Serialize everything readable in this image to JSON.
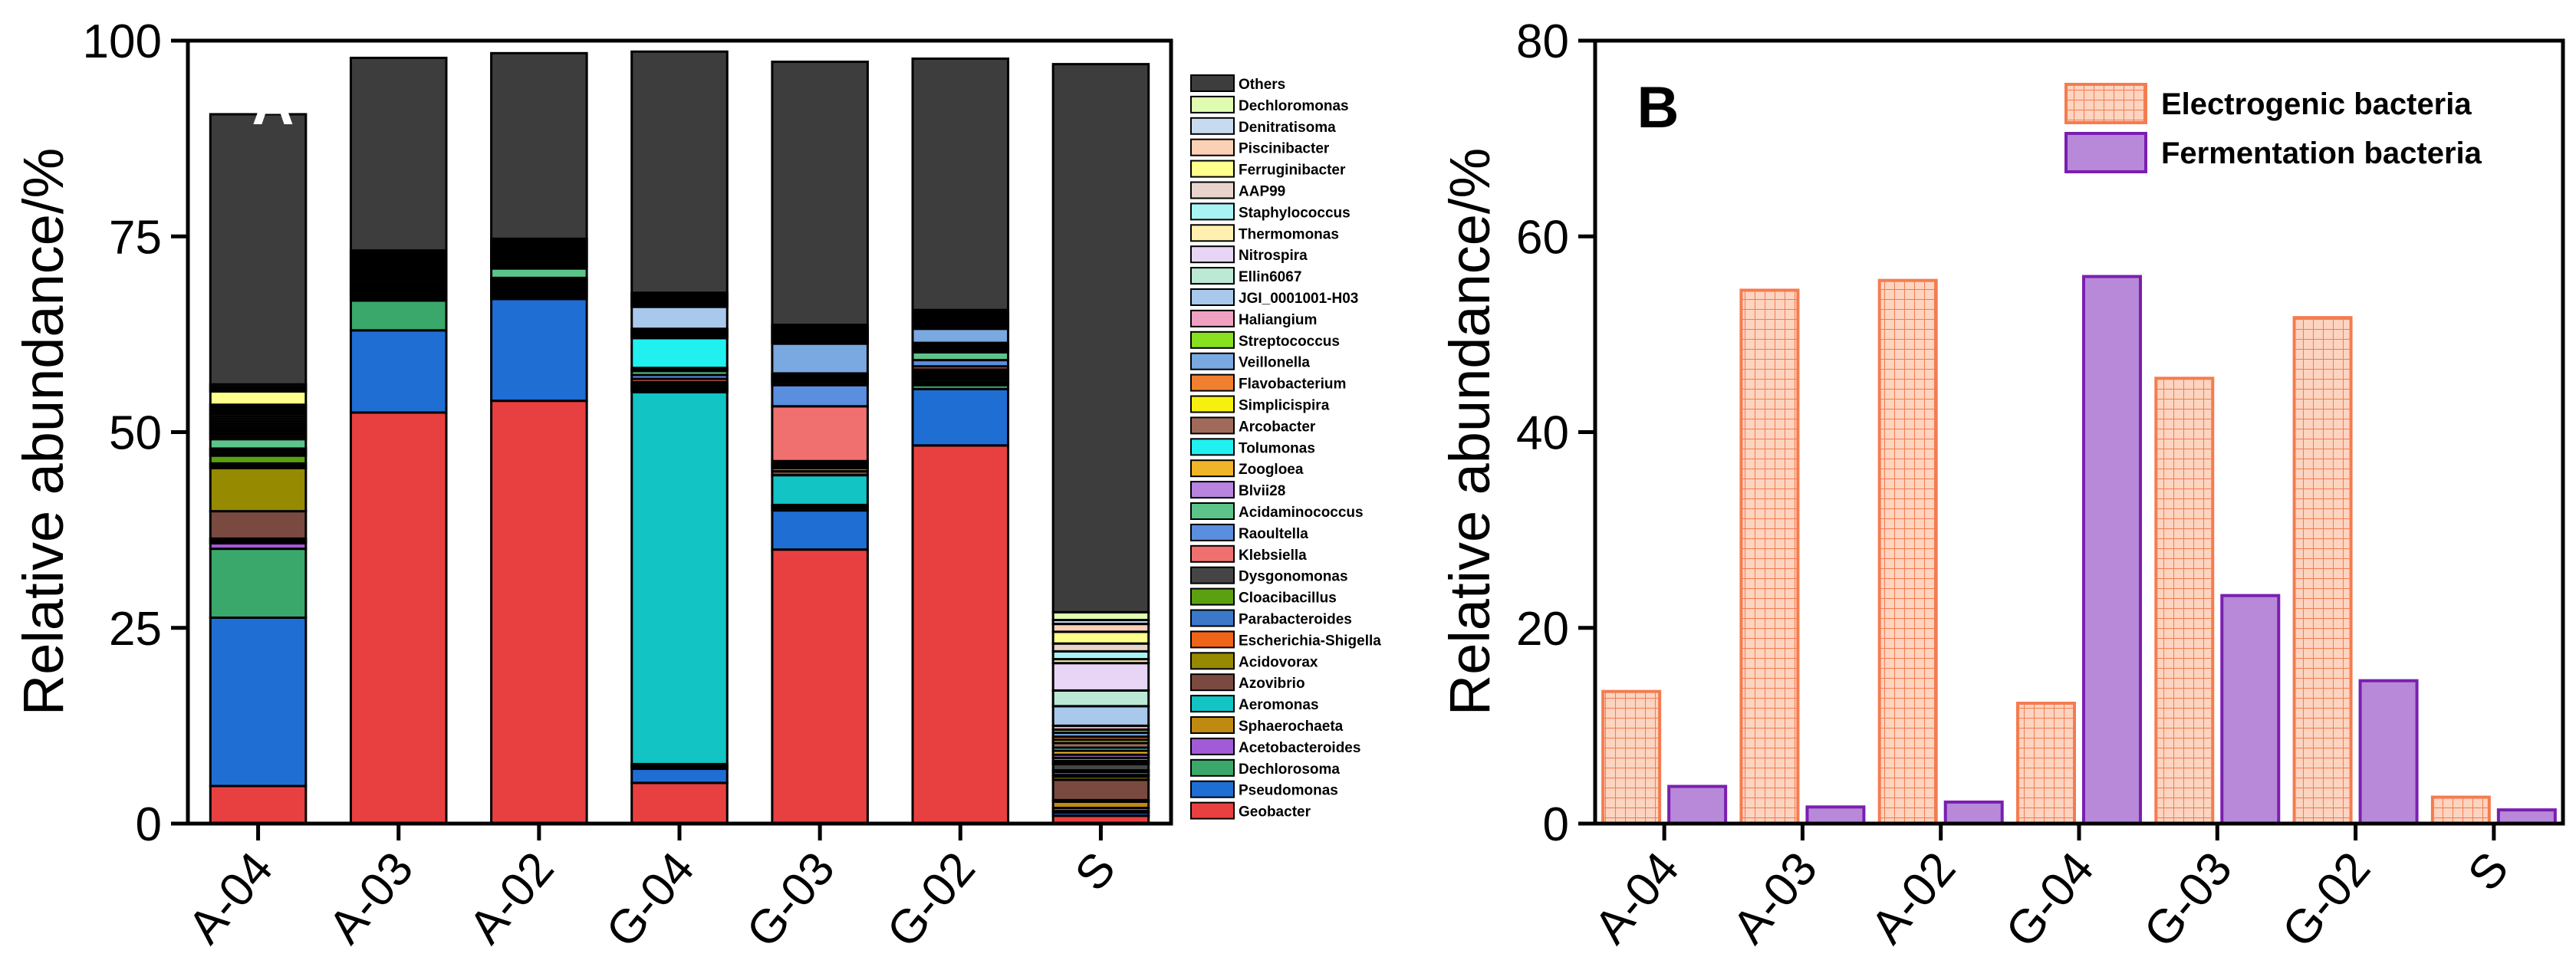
{
  "chart_data": [
    {
      "type": "stacked_bar",
      "panel_label": "A",
      "ylabel": "Relative abundance/%",
      "xlabel": "",
      "ylim": [
        0,
        100
      ],
      "yticks": [
        "0",
        "25",
        "50",
        "75",
        "100"
      ],
      "categories": [
        "A-04",
        "A-03",
        "A-02",
        "G-04",
        "G-03",
        "G-02",
        "S"
      ],
      "legend_position": "right",
      "series": [
        {
          "name": "Geobacter",
          "color": "#e84040",
          "values": [
            4.8,
            52.5,
            54.0,
            5.2,
            35.0,
            48.3,
            1.0
          ]
        },
        {
          "name": "Pseudomonas",
          "color": "#1f6ed4",
          "values": [
            21.5,
            10.5,
            13.0,
            1.8,
            5.0,
            7.2,
            0.4
          ]
        },
        {
          "name": "Dechlorosoma",
          "color": "#3aa86a",
          "values": [
            8.8,
            3.8,
            0.3,
            0.2,
            0.3,
            0.5,
            0.2
          ]
        },
        {
          "name": "Acetobacteroides",
          "color": "#a35ad6",
          "values": [
            0.7,
            0.3,
            0.3,
            0.2,
            0.2,
            0.2,
            0.4
          ]
        },
        {
          "name": "Sphaerochaeta",
          "color": "#c08a10",
          "values": [
            0.3,
            0.2,
            0.2,
            0.2,
            0.2,
            0.2,
            0.8
          ]
        },
        {
          "name": "Aeromonas",
          "color": "#12c4c4",
          "values": [
            0.3,
            0.2,
            0.2,
            47.5,
            3.8,
            0.3,
            0.2
          ]
        },
        {
          "name": "Azovibrio",
          "color": "#7a4a40",
          "values": [
            3.5,
            0.2,
            0.2,
            0.2,
            0.5,
            0.2,
            2.6
          ]
        },
        {
          "name": "Acidovorax",
          "color": "#968a00",
          "values": [
            5.5,
            0.2,
            0.2,
            0.2,
            0.4,
            0.2,
            0.4
          ]
        },
        {
          "name": "Escherichia-Shigella",
          "color": "#f06418",
          "values": [
            0.3,
            0.2,
            0.2,
            0.2,
            0.2,
            0.2,
            0.2
          ]
        },
        {
          "name": "Parabacteroides",
          "color": "#3b78c8",
          "values": [
            0.3,
            0.2,
            0.2,
            0.2,
            0.2,
            0.2,
            0.4
          ]
        },
        {
          "name": "Cloacibacillus",
          "color": "#5aa010",
          "values": [
            1.0,
            0.2,
            0.2,
            0.3,
            0.2,
            0.3,
            0.2
          ]
        },
        {
          "name": "Dysgonomonas",
          "color": "#454545",
          "values": [
            0.3,
            0.2,
            0.2,
            0.2,
            0.3,
            0.2,
            0.8
          ]
        },
        {
          "name": "Klebsiella",
          "color": "#f07070",
          "values": [
            0.3,
            0.2,
            0.2,
            0.4,
            7.0,
            0.4,
            0.2
          ]
        },
        {
          "name": "Raoultella",
          "color": "#5a8ede",
          "values": [
            0.3,
            0.2,
            0.3,
            0.5,
            2.7,
            0.8,
            0.2
          ]
        },
        {
          "name": "Acidaminococcus",
          "color": "#5cc48a",
          "values": [
            1.2,
            0.3,
            1.2,
            0.5,
            0.3,
            1.0,
            0.4
          ]
        },
        {
          "name": "Blvii28",
          "color": "#b884e0",
          "values": [
            0.3,
            0.2,
            0.2,
            0.2,
            0.2,
            0.2,
            0.4
          ]
        },
        {
          "name": "Zoogloea",
          "color": "#f0b428",
          "values": [
            0.3,
            0.2,
            0.2,
            0.2,
            0.2,
            0.2,
            0.5
          ]
        },
        {
          "name": "Tolumonas",
          "color": "#20f0f0",
          "values": [
            0.2,
            0.2,
            0.2,
            3.8,
            0.2,
            0.2,
            0.4
          ]
        },
        {
          "name": "Arcobacter",
          "color": "#a06a5a",
          "values": [
            0.3,
            0.2,
            0.2,
            0.2,
            0.2,
            0.2,
            0.6
          ]
        },
        {
          "name": "Simplicispira",
          "color": "#f5f010",
          "values": [
            0.3,
            0.2,
            0.2,
            0.2,
            0.2,
            0.2,
            0.4
          ]
        },
        {
          "name": "Flavobacterium",
          "color": "#f08030",
          "values": [
            0.3,
            0.2,
            0.2,
            0.2,
            0.2,
            0.2,
            0.4
          ]
        },
        {
          "name": "Veillonella",
          "color": "#7aa8e0",
          "values": [
            0.3,
            0.2,
            0.2,
            0.2,
            3.8,
            1.8,
            0.5
          ]
        },
        {
          "name": "Streptococcus",
          "color": "#88e020",
          "values": [
            0.3,
            0.2,
            0.2,
            0.2,
            0.2,
            0.2,
            0.4
          ]
        },
        {
          "name": "Haliangium",
          "color": "#f0a0c0",
          "values": [
            0.3,
            0.2,
            0.2,
            0.2,
            0.2,
            0.2,
            0.5
          ]
        },
        {
          "name": "JGI_0001001-H03",
          "color": "#a8c8ec",
          "values": [
            0.3,
            0.2,
            0.2,
            2.8,
            0.2,
            0.2,
            2.5
          ]
        },
        {
          "name": "Ellin6067",
          "color": "#bce8d6",
          "values": [
            0.3,
            0.2,
            0.2,
            0.2,
            0.2,
            0.2,
            2.0
          ]
        },
        {
          "name": "Nitrospira",
          "color": "#e8d4f4",
          "values": [
            0.3,
            0.2,
            0.2,
            0.2,
            0.2,
            0.2,
            3.5
          ]
        },
        {
          "name": "Thermomonas",
          "color": "#fff0b0",
          "values": [
            0.3,
            0.2,
            0.2,
            0.2,
            0.2,
            0.2,
            0.5
          ]
        },
        {
          "name": "Staphylococcus",
          "color": "#a8f4f4",
          "values": [
            0.3,
            0.2,
            0.2,
            0.2,
            0.2,
            0.2,
            1.0
          ]
        },
        {
          "name": "AAP99",
          "color": "#e8d4cc",
          "values": [
            0.3,
            0.2,
            0.2,
            0.2,
            0.2,
            0.2,
            1.0
          ]
        },
        {
          "name": "Ferruginibacter",
          "color": "#ffff8c",
          "values": [
            1.7,
            0.2,
            0.2,
            0.2,
            0.2,
            0.2,
            1.5
          ]
        },
        {
          "name": "Piscinibacter",
          "color": "#fcd0b4",
          "values": [
            0.3,
            0.2,
            0.2,
            0.2,
            0.2,
            0.2,
            1.0
          ]
        },
        {
          "name": "Denitratisoma",
          "color": "#c8daf0",
          "values": [
            0.3,
            0.2,
            0.2,
            0.2,
            0.2,
            0.2,
            0.5
          ]
        },
        {
          "name": "Dechloromonas",
          "color": "#e0fcb0",
          "values": [
            0.3,
            0.2,
            0.2,
            0.2,
            0.2,
            0.2,
            1.0
          ]
        },
        {
          "name": "Others",
          "color": "#3d3d3d",
          "values": [
            34.5,
            24.6,
            23.7,
            30.8,
            33.6,
            32.1,
            70.0
          ]
        }
      ]
    },
    {
      "type": "bar",
      "panel_label": "B",
      "ylabel": "Relative abundance/%",
      "xlabel": "",
      "ylim": [
        0,
        80
      ],
      "yticks": [
        "0",
        "20",
        "40",
        "60",
        "80"
      ],
      "categories": [
        "A-04",
        "A-03",
        "A-02",
        "G-04",
        "G-03",
        "G-02",
        "S"
      ],
      "legend_position": "top-right",
      "series": [
        {
          "name": "Electrogenic bacteria",
          "fill": "#fcd4c0",
          "stroke": "#f47c50",
          "pattern": "grid",
          "values": [
            13.5,
            54.5,
            55.5,
            12.3,
            45.5,
            51.7,
            2.7
          ]
        },
        {
          "name": "Fermentation bacteria",
          "fill": "#b989d9",
          "stroke": "#7a1fb0",
          "pattern": "solid",
          "values": [
            3.8,
            1.7,
            2.2,
            55.9,
            23.3,
            14.6,
            1.4
          ]
        }
      ]
    }
  ]
}
